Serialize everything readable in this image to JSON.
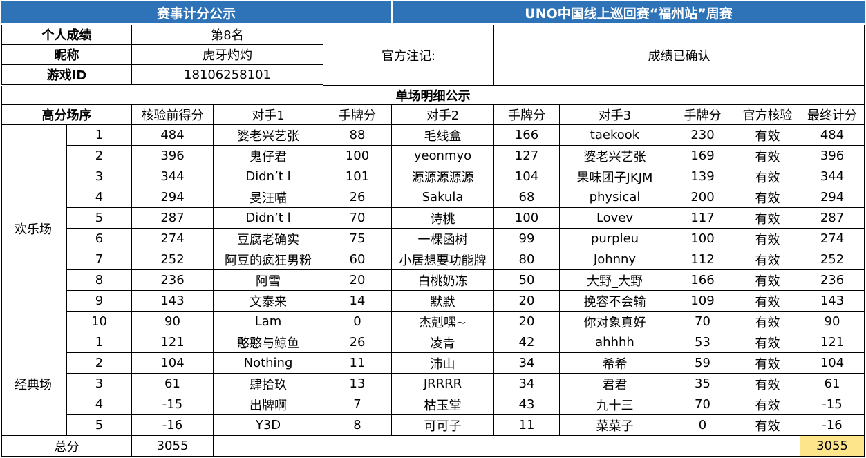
{
  "header": {
    "left": "赛事计分公示",
    "right": "UNO中国线上巡回赛“福州站”周赛"
  },
  "player": {
    "rank_label": "个人成绩",
    "rank_value": "第8名",
    "nickname_label": "昵称",
    "nickname_value": "虎牙灼灼",
    "game_id_label": "游戏ID",
    "game_id_value": "18106258101",
    "official_note_label": "官方注记:",
    "official_note_value": "成绩已确认"
  },
  "detail_title": "单场明细公示",
  "columns": {
    "order": "高分场序",
    "pre_score": "核验前得分",
    "opp1": "对手1",
    "hand1": "手牌分",
    "opp2": "对手2",
    "hand2": "手牌分",
    "opp3": "对手3",
    "hand3": "手牌分",
    "verify": "官方核验",
    "final": "最终计分"
  },
  "groups": [
    {
      "name": "欢乐场",
      "rows": [
        [
          "1",
          "484",
          "婆老兴艺张",
          "88",
          "毛线盒",
          "166",
          "taekook",
          "230",
          "有效",
          "484"
        ],
        [
          "2",
          "396",
          "鬼仔君",
          "100",
          "yeonmyo",
          "127",
          "婆老兴艺张",
          "169",
          "有效",
          "396"
        ],
        [
          "3",
          "344",
          "Didn’t l",
          "101",
          "源源源源源",
          "104",
          "果味团子JKJM",
          "139",
          "有效",
          "344"
        ],
        [
          "4",
          "294",
          "旻汪喵",
          "26",
          "Sakula",
          "68",
          "physical",
          "200",
          "有效",
          "294"
        ],
        [
          "5",
          "287",
          "Didn’t l",
          "70",
          "诗桃",
          "100",
          "Lovev",
          "117",
          "有效",
          "287"
        ],
        [
          "6",
          "274",
          "豆腐老确实",
          "75",
          "一棵函树",
          "99",
          "purpleu",
          "100",
          "有效",
          "274"
        ],
        [
          "7",
          "252",
          "阿豆的疯狂男粉",
          "60",
          "小居想要功能牌",
          "80",
          "Johnny",
          "112",
          "有效",
          "252"
        ],
        [
          "8",
          "236",
          "阿雪",
          "20",
          "白桃奶冻",
          "50",
          "大野_大野",
          "166",
          "有效",
          "236"
        ],
        [
          "9",
          "143",
          "文泰来",
          "14",
          "默默",
          "20",
          "挽容不会输",
          "109",
          "有效",
          "143"
        ],
        [
          "10",
          "90",
          "Lam",
          "0",
          "杰剋嘿~",
          "20",
          "你对象真好",
          "70",
          "有效",
          "90"
        ]
      ]
    },
    {
      "name": "经典场",
      "rows": [
        [
          "1",
          "121",
          "憨憨与鲸鱼",
          "26",
          "凌青",
          "42",
          "ahhhh",
          "53",
          "有效",
          "121"
        ],
        [
          "2",
          "104",
          "Nothing",
          "11",
          "沛山",
          "34",
          "希希",
          "59",
          "有效",
          "104"
        ],
        [
          "3",
          "61",
          "肆拾玖",
          "13",
          "JRRRR",
          "34",
          "君君",
          "35",
          "有效",
          "61"
        ],
        [
          "4",
          "-15",
          "出牌啊",
          "7",
          "枯玉堂",
          "43",
          "九十三",
          "70",
          "有效",
          "-15"
        ],
        [
          "5",
          "-16",
          "Y3D",
          "8",
          "可可子",
          "11",
          "菜菜子",
          "0",
          "有效",
          "-16"
        ]
      ]
    }
  ],
  "total": {
    "label": "总分",
    "value": "3055",
    "final_value": "3055"
  }
}
